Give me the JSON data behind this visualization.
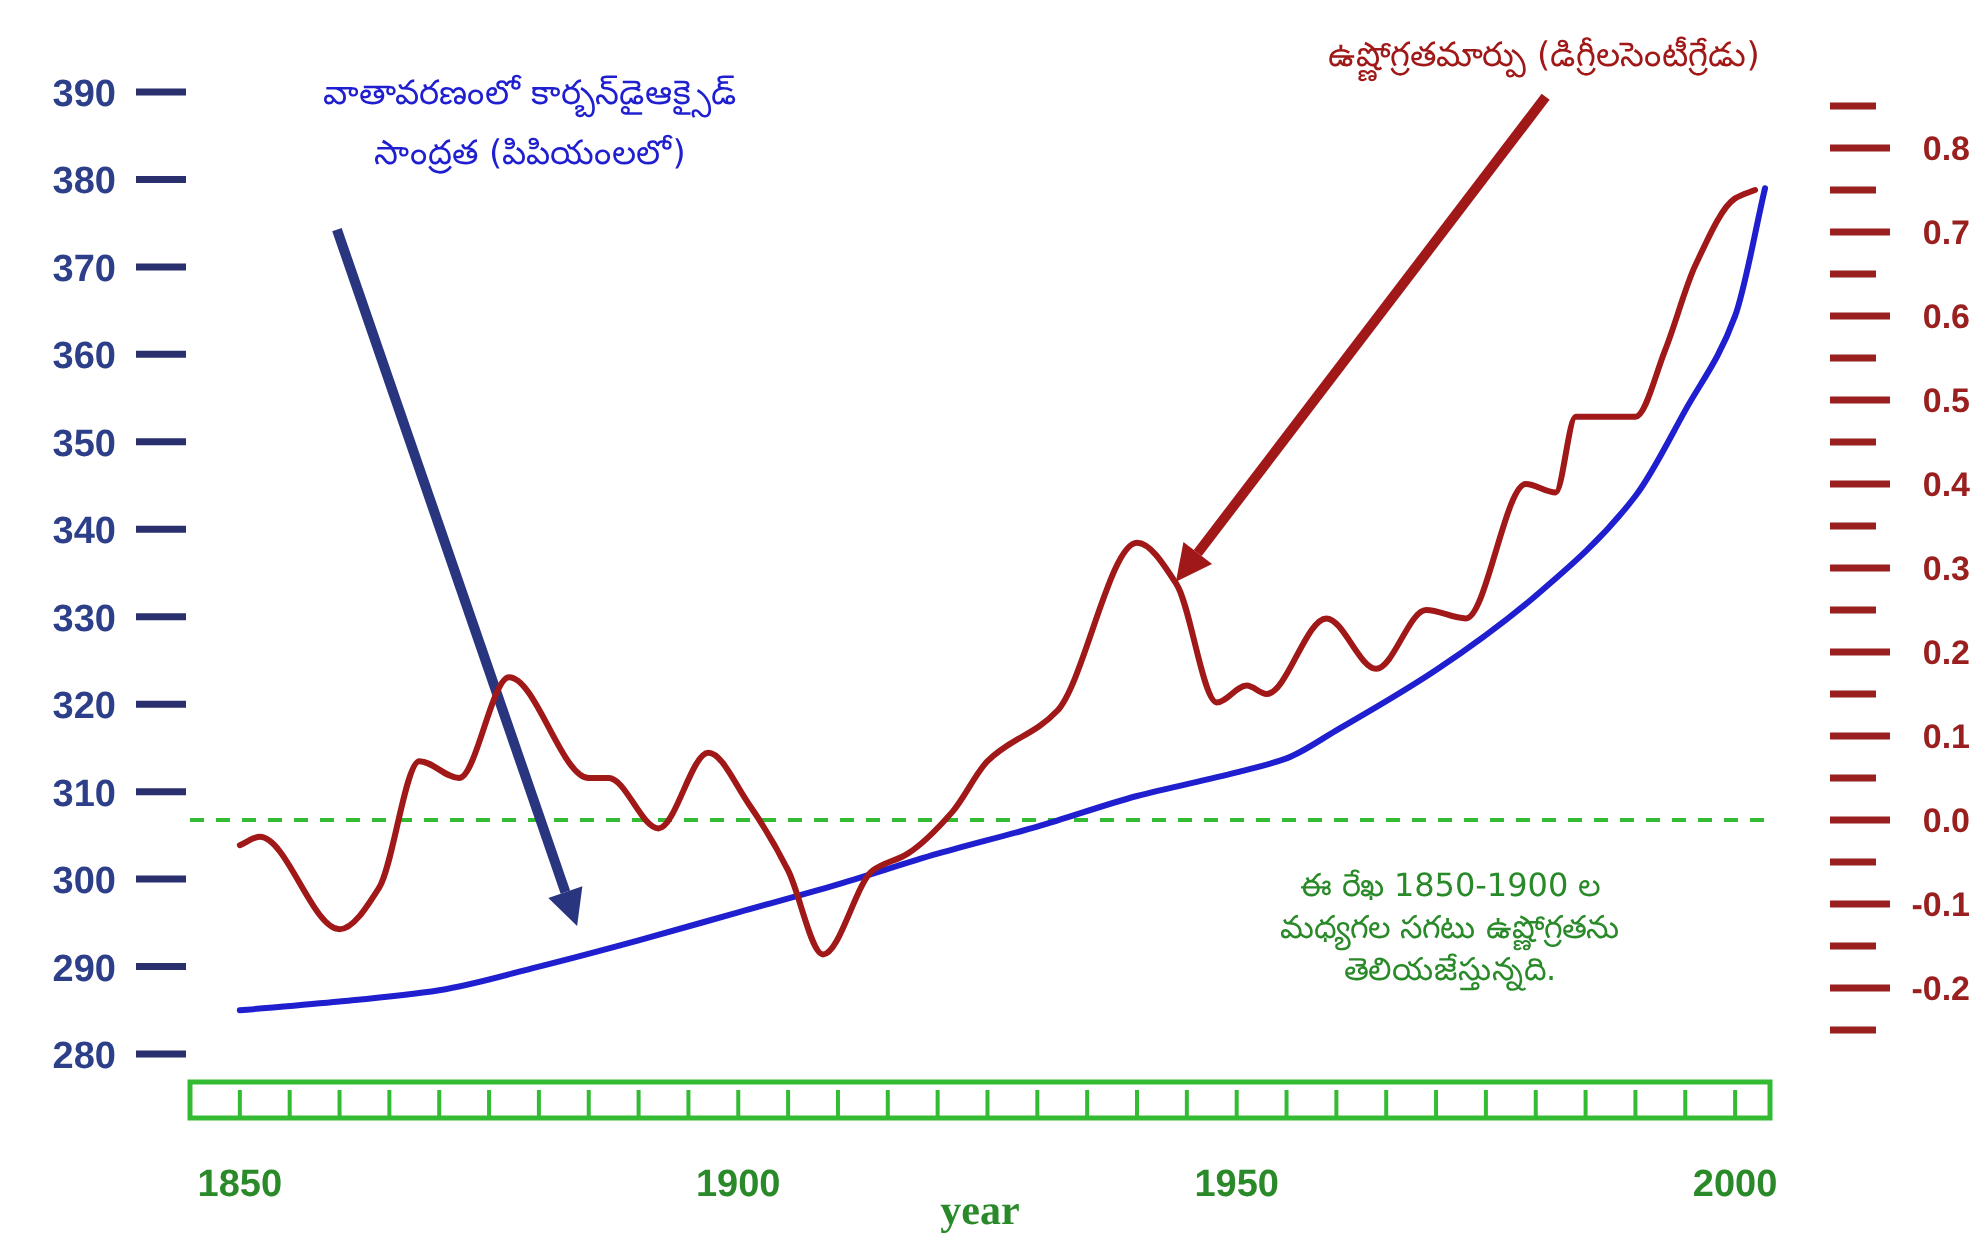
{
  "chart_data": {
    "type": "line",
    "xlabel": "year",
    "xlim": [
      1845,
      2003.5
    ],
    "xticks": [
      1850,
      1900,
      1950,
      2000
    ],
    "ylim": [
      280,
      390
    ],
    "yticks": [
      280,
      290,
      300,
      310,
      320,
      330,
      340,
      350,
      360,
      370,
      380,
      390
    ],
    "y2lim": [
      -0.2,
      0.8
    ],
    "y2ticks": [
      {
        "value": -0.2,
        "label": "-0.2"
      },
      {
        "value": -0.1,
        "label": "-0.1"
      },
      {
        "value": 0,
        "label": "0.0"
      },
      {
        "value": 0.1,
        "label": "0.1"
      },
      {
        "value": 0.2,
        "label": "0.2"
      },
      {
        "value": 0.3,
        "label": "0.3"
      },
      {
        "value": 0.4,
        "label": "0.4"
      },
      {
        "value": 0.5,
        "label": "0.5"
      },
      {
        "value": 0.6,
        "label": "0.6"
      },
      {
        "value": 0.7,
        "label": "0.7"
      },
      {
        "value": 0.8,
        "label": "0.8"
      }
    ],
    "series": [
      {
        "name": "వాతావరణంలో కార్బన్‌డైఆక్సైడ్\nసాంద్రత (పిపియంలలో)",
        "color": "#1f1fd0",
        "x": [
          1850,
          1860,
          1870,
          1880,
          1890,
          1900,
          1910,
          1920,
          1930,
          1940,
          1950,
          1955,
          1960,
          1970,
          1980,
          1990,
          1995,
          2000,
          2003
        ],
        "values": [
          285.0,
          286.0,
          287.3,
          290.0,
          293.0,
          296.2,
          299.4,
          302.9,
          306.0,
          309.5,
          312.2,
          313.8,
          317.0,
          323.9,
          332.4,
          343.8,
          353.6,
          364.4,
          379.0
        ]
      },
      {
        "name": "ఉష్ణోగ్రతమార్పు (డిగ్రీలసెంటీగ్రేడు)",
        "color": "#a01818",
        "axis": "y2",
        "x": [
          1850,
          1852,
          1860,
          1864,
          1868,
          1872,
          1877,
          1885,
          1887,
          1892,
          1897,
          1901,
          1905,
          1908.5,
          1913.5,
          1917,
          1921.5,
          1925,
          1932,
          1940,
          1944,
          1948,
          1951,
          1953,
          1959,
          1964,
          1969,
          1973,
          1979,
          1982,
          1984,
          1990,
          1993,
          1996,
          2000,
          2002
        ],
        "values": [
          -0.03,
          -0.02,
          -0.13,
          -0.08,
          0.07,
          0.05,
          0.17,
          0.05,
          0.05,
          -0.01,
          0.08,
          0.02,
          -0.06,
          -0.16,
          -0.06,
          -0.04,
          0.01,
          0.07,
          0.13,
          0.33,
          0.28,
          0.14,
          0.16,
          0.15,
          0.24,
          0.18,
          0.25,
          0.24,
          0.4,
          0.39,
          0.48,
          0.48,
          0.56,
          0.66,
          0.74,
          0.75
        ]
      }
    ],
    "ref_lines": [
      {
        "axis": "y2",
        "value": 0,
        "color": "#33bb33",
        "line_style": "dashed"
      }
    ],
    "annotations": [
      "ఈ రేఖ 1850-1900 ల\nమధ్యగల సగటు ఉష్ణోగ్రతను\nతెలియజేస్తున్నది."
    ]
  }
}
